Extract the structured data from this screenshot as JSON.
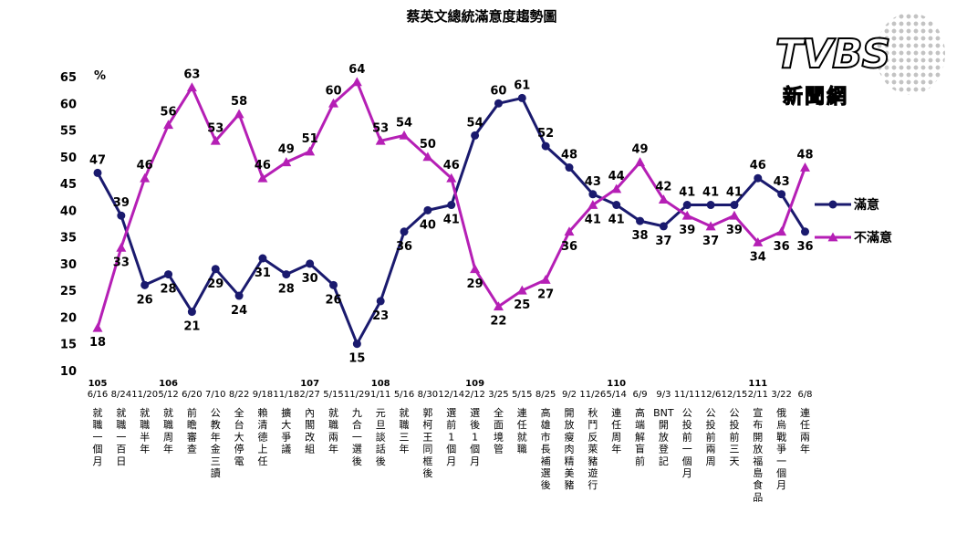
{
  "chart_data": {
    "type": "line",
    "title": "蔡英文總統滿意度趨勢圖",
    "ylabel": "%",
    "ylim": [
      10,
      65
    ],
    "yticks": [
      10,
      15,
      20,
      25,
      30,
      35,
      40,
      45,
      50,
      55,
      60,
      65
    ],
    "grid": false,
    "legend_position": "right",
    "categories": [
      "6/16",
      "8/24",
      "11/20",
      "5/12",
      "6/20",
      "7/10",
      "8/22",
      "9/18",
      "11/18",
      "2/27",
      "5/15",
      "11/29",
      "1/11",
      "5/16",
      "8/30",
      "12/14",
      "2/12",
      "3/25",
      "5/15",
      "8/25",
      "9/2",
      "11/26",
      "5/14",
      "6/9",
      "9/3",
      "11/11",
      "12/6",
      "12/15",
      "2/11",
      "3/22",
      "6/8"
    ],
    "year_markers": [
      {
        "index": 0,
        "year": "105"
      },
      {
        "index": 3,
        "year": "106"
      },
      {
        "index": 9,
        "year": "107"
      },
      {
        "index": 12,
        "year": "108"
      },
      {
        "index": 16,
        "year": "109"
      },
      {
        "index": 22,
        "year": "110"
      },
      {
        "index": 28,
        "year": "111"
      }
    ],
    "event_labels": [
      "就職一個月",
      "就職一百日",
      "就職半年",
      "就職周年",
      "前瞻審查",
      "公教年金三讀",
      "全台大停電",
      "賴清德上任",
      "擴大爭議",
      "內閣改組",
      "就職兩年",
      "九合一選後",
      "元旦談話後",
      "就職三年",
      "郭柯王同框後",
      "選前1個月",
      "選後1個月",
      "全面境管",
      "連任就職",
      "高雄市長補選後",
      "開放瘦肉精美豬",
      "秋鬥反萊豬遊行",
      "連任周年",
      "高端解盲前",
      "BNT開放登記",
      "公投前一個月",
      "公投前兩周",
      "公投前三天",
      "宣布開放福島食品",
      "俄烏戰爭一個月",
      "連任兩年"
    ],
    "series": [
      {
        "name": "滿意",
        "color": "#1a1a6e",
        "marker": "circle",
        "values": [
          47,
          39,
          26,
          28,
          21,
          29,
          24,
          31,
          28,
          30,
          26,
          15,
          23,
          36,
          40,
          41,
          54,
          60,
          61,
          52,
          48,
          43,
          41,
          38,
          37,
          41,
          41,
          41,
          46,
          43,
          36
        ]
      },
      {
        "name": "不滿意",
        "color": "#b51fb5",
        "marker": "triangle",
        "values": [
          18,
          33,
          46,
          56,
          63,
          53,
          58,
          46,
          49,
          51,
          60,
          64,
          53,
          54,
          50,
          46,
          29,
          22,
          25,
          27,
          36,
          41,
          44,
          49,
          42,
          39,
          37,
          39,
          34,
          36,
          48
        ]
      }
    ]
  },
  "logo": {
    "brand": "TVBS",
    "subtitle": "新聞網"
  }
}
